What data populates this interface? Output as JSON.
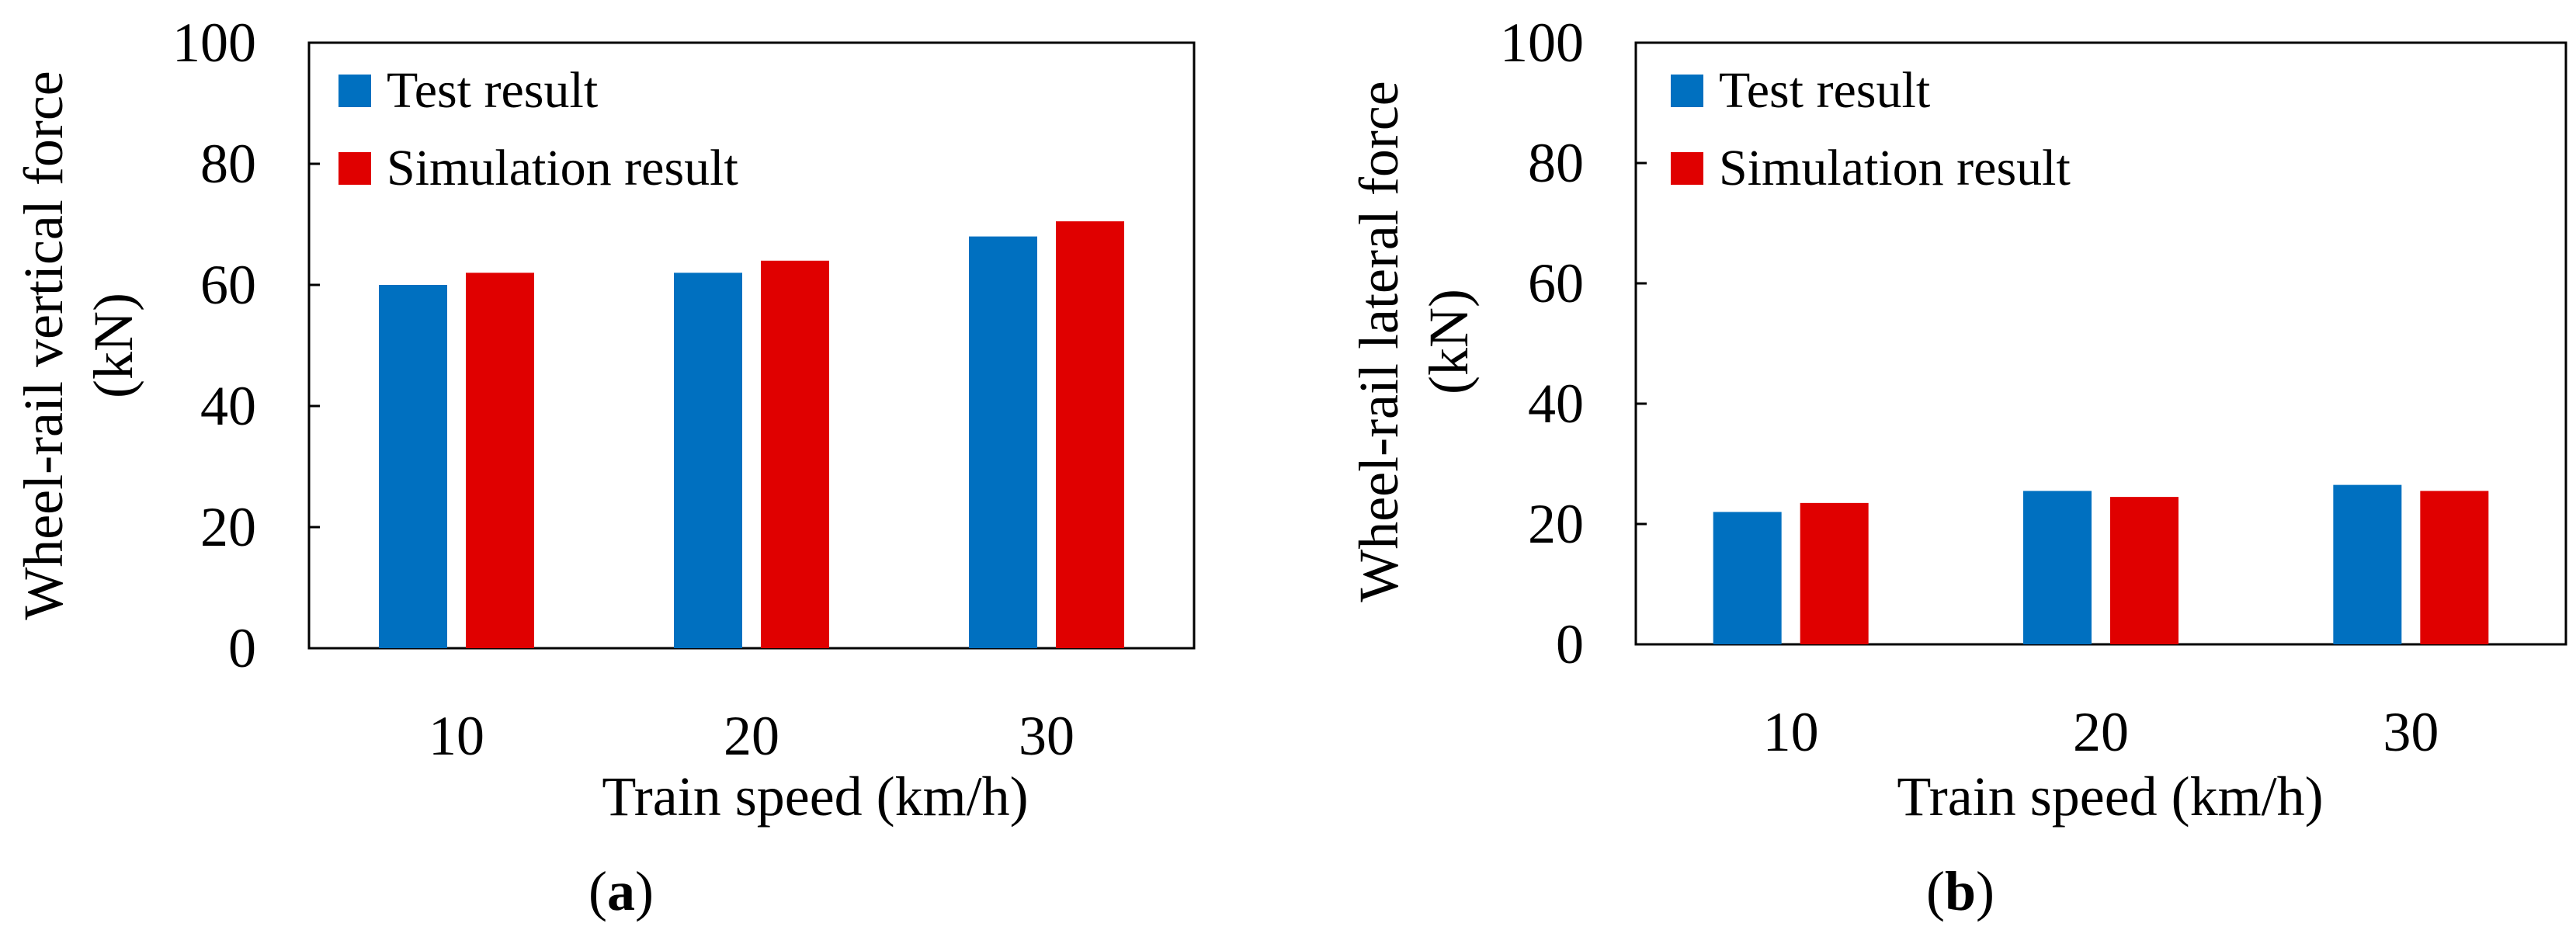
{
  "chart_data": [
    {
      "type": "bar",
      "panel_label": "a",
      "title": "",
      "categories": [
        "10",
        "20",
        "30"
      ],
      "series": [
        {
          "name": "Test result",
          "values": [
            60,
            62,
            68
          ]
        },
        {
          "name": "Simulation result",
          "values": [
            62,
            64,
            70.5
          ]
        }
      ],
      "xlabel": "Train speed (km/h)",
      "ylabel_line1": "Wheel-rail vertical force",
      "ylabel_line2": "(kN)",
      "ylim": [
        0,
        100
      ],
      "yticks": [
        0,
        20,
        40,
        60,
        80,
        100
      ],
      "grid": false,
      "legend": "top-left"
    },
    {
      "type": "bar",
      "panel_label": "b",
      "title": "",
      "categories": [
        "10",
        "20",
        "30"
      ],
      "series": [
        {
          "name": "Test result",
          "values": [
            22,
            25.5,
            26.5
          ]
        },
        {
          "name": "Simulation result",
          "values": [
            23.5,
            24.5,
            25.5
          ]
        }
      ],
      "xlabel": "Train speed (km/h)",
      "ylabel_line1": "Wheel-rail lateral force",
      "ylabel_line2": "(kN)",
      "ylim": [
        0,
        100
      ],
      "yticks": [
        0,
        20,
        40,
        60,
        80,
        100
      ],
      "grid": false,
      "legend": "top-left"
    }
  ],
  "colors": {
    "test": "#0070C0",
    "simulation": "#E00000"
  },
  "labels": {
    "open_paren": "(",
    "close_paren": ")",
    "panel_a": "a",
    "panel_b": "b"
  }
}
